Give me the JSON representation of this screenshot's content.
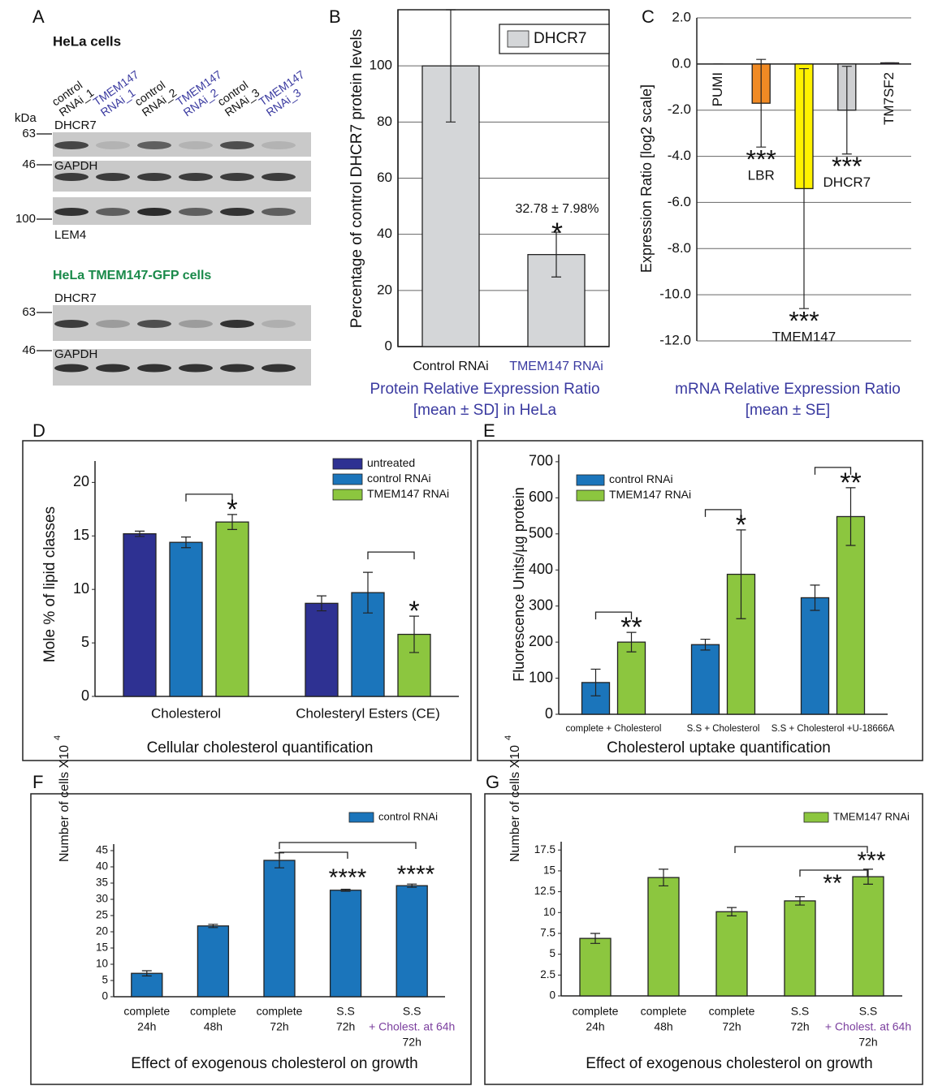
{
  "blot": {
    "panel": "A",
    "sections": [
      {
        "title": "HeLa cells",
        "unit": "kDa",
        "lanes": [
          [
            "control",
            "RNAi_1"
          ],
          [
            "TMEM147",
            "RNAi_1"
          ],
          [
            "control",
            "RNAi_2"
          ],
          [
            "TMEM147",
            "RNAi_2"
          ],
          [
            "control",
            "RNAi_3"
          ],
          [
            "TMEM147",
            "RNAi_3"
          ]
        ],
        "blots": [
          {
            "label": "DHCR7",
            "marker": "63"
          },
          {
            "label": "GAPDH",
            "marker": "46"
          },
          {
            "label": "LEM4",
            "marker": "100"
          }
        ]
      },
      {
        "title": "HeLa TMEM147-GFP cells",
        "blots": [
          {
            "label": "DHCR7",
            "marker": "63"
          },
          {
            "label": "GAPDH",
            "marker": "46"
          }
        ]
      }
    ]
  },
  "chart_data": [
    {
      "type": "bar",
      "panel": "B",
      "ylabel": "Percentage of control DHCR7 protein levels",
      "categories": [
        "Control RNAi",
        "TMEM147 RNAi"
      ],
      "series": [
        {
          "name": "DHCR7",
          "color": "#d4d6d8",
          "values": [
            100,
            32.78
          ],
          "errors": [
            20,
            7.98
          ]
        }
      ],
      "ylim": [
        0,
        120
      ],
      "yticks": [
        0,
        20,
        40,
        60,
        80,
        100
      ],
      "grid": true,
      "legend": "upper right",
      "annotations": [
        "32.78 ± 7.98%",
        "*"
      ],
      "caption": [
        "Protein Relative Expression Ratio",
        "[mean ± SD] in HeLa"
      ]
    },
    {
      "type": "bar",
      "panel": "C",
      "ylabel": "Expression Ratio [log2 scale]",
      "categories": [
        "PUMI",
        "LBR",
        "TMEM147",
        "DHCR7",
        "TM7SF2"
      ],
      "values": [
        0,
        -1.7,
        -5.4,
        -2.0,
        0.05
      ],
      "errors": [
        0,
        1.9,
        5.2,
        1.9,
        0
      ],
      "colors": [
        "#cfd0d2",
        "#f08a24",
        "#fff200",
        "#cfd0d2",
        "#7b3f8f"
      ],
      "significance": [
        null,
        "***",
        "***",
        "***",
        null
      ],
      "ylim": [
        -12,
        2
      ],
      "yticks": [
        {
          "value": -12,
          "label": "-12.0"
        },
        {
          "value": -10,
          "label": "-10.0"
        },
        {
          "value": -8,
          "label": "-8.0"
        },
        {
          "value": -6,
          "label": "-6.0"
        },
        {
          "value": -4,
          "label": "-4.0"
        },
        {
          "value": -2,
          "label": "-2.0"
        },
        {
          "value": 0,
          "label": "0.0"
        },
        {
          "value": 2,
          "label": "2.0"
        }
      ],
      "grid": true,
      "caption": [
        "mRNA Relative Expression Ratio",
        "[mean ± SE]"
      ]
    },
    {
      "type": "bar",
      "panel": "D",
      "ylabel": "Mole % of lipid classes",
      "categories": [
        "Cholesterol",
        "Cholesteryl Esters (CE)"
      ],
      "series": [
        {
          "name": "untreated",
          "color": "#2e3192",
          "values": [
            15.2,
            8.7
          ],
          "errors": [
            0.25,
            0.7
          ]
        },
        {
          "name": "control RNAi",
          "color": "#1b75bb",
          "values": [
            14.4,
            9.7
          ],
          "errors": [
            0.5,
            1.9
          ]
        },
        {
          "name": "TMEM147 RNAi",
          "color": "#8cc63f",
          "values": [
            16.3,
            5.8
          ],
          "errors": [
            0.7,
            1.7
          ],
          "significance": [
            "*",
            "*"
          ]
        }
      ],
      "ylim": [
        0,
        22
      ],
      "yticks": [
        0,
        5,
        10,
        15,
        20
      ],
      "grid": false,
      "legend": "upper right",
      "caption": "Cellular cholesterol quantification"
    },
    {
      "type": "bar",
      "panel": "E",
      "ylabel": "Fluorescence Units/µg protein",
      "categories": [
        "complete + Cholesterol",
        "S.S + Cholesterol",
        "S.S + Cholesterol +U-18666A"
      ],
      "series": [
        {
          "name": "control RNAi",
          "color": "#1b75bb",
          "values": [
            88,
            193,
            323
          ],
          "errors": [
            37,
            15,
            35
          ]
        },
        {
          "name": "TMEM147 RNAi",
          "color": "#8cc63f",
          "values": [
            200,
            388,
            548
          ],
          "errors": [
            27,
            123,
            80
          ],
          "significance": [
            "**",
            "*",
            "**"
          ]
        }
      ],
      "ylim": [
        0,
        720
      ],
      "yticks": [
        0,
        100,
        200,
        300,
        400,
        500,
        600,
        700
      ],
      "grid": false,
      "legend": "upper left",
      "caption": "Cholesterol uptake quantification"
    },
    {
      "type": "bar",
      "panel": "F",
      "ylabel": "Number of cells X10",
      "ylabel_exponent": "4",
      "categories": [
        [
          "complete",
          "24h"
        ],
        [
          "complete",
          "48h"
        ],
        [
          "complete",
          "72h"
        ],
        [
          "S.S",
          "72h"
        ],
        [
          "S.S",
          "+ Cholest. at 64h",
          "72h"
        ]
      ],
      "series": [
        {
          "name": "control RNAi",
          "color": "#1b75bb",
          "values": [
            7.2,
            21.8,
            42,
            32.8,
            34.2
          ],
          "errors": [
            0.8,
            0.5,
            2.3,
            0.3,
            0.5
          ]
        }
      ],
      "ylim": [
        0,
        47
      ],
      "yticks": [
        0,
        5,
        10,
        15,
        20,
        25,
        30,
        35,
        40,
        45
      ],
      "grid": false,
      "legend": "upper right",
      "annotations": [
        "****",
        "****"
      ],
      "caption": "Effect of exogenous cholesterol on growth"
    },
    {
      "type": "bar",
      "panel": "G",
      "ylabel": "Number of cells X10",
      "ylabel_exponent": "4",
      "categories": [
        [
          "complete",
          "24h"
        ],
        [
          "complete",
          "48h"
        ],
        [
          "complete",
          "72h"
        ],
        [
          "S.S",
          "72h"
        ],
        [
          "S.S",
          "+ Cholest. at 64h",
          "72h"
        ]
      ],
      "series": [
        {
          "name": "TMEM147 RNAi",
          "color": "#8cc63f",
          "values": [
            6.9,
            14.2,
            10.1,
            11.4,
            14.3
          ],
          "errors": [
            0.6,
            1.0,
            0.5,
            0.5,
            0.9
          ]
        }
      ],
      "ylim": [
        0,
        18.5
      ],
      "yticks": [
        0,
        2.5,
        5,
        7.5,
        10,
        12.5,
        15,
        17.5
      ],
      "grid": false,
      "legend": "upper right",
      "annotations": [
        "***",
        "**"
      ],
      "caption": "Effect of exogenous cholesterol on growth"
    }
  ]
}
